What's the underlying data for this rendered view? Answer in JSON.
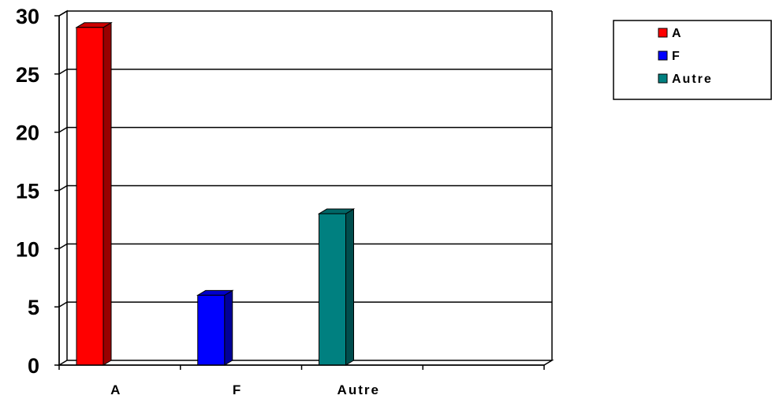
{
  "chart_data": {
    "type": "bar",
    "categories": [
      "A",
      "F",
      "Autre",
      ""
    ],
    "series": [
      {
        "name": "A",
        "values": [
          29,
          null,
          null,
          null
        ],
        "color": "#FF0000",
        "side": "#990000",
        "top": "#CC0000"
      },
      {
        "name": "F",
        "values": [
          null,
          6,
          null,
          null
        ],
        "color": "#0000FF",
        "side": "#000099",
        "top": "#0000CC"
      },
      {
        "name": "Autre",
        "values": [
          null,
          null,
          13,
          null
        ],
        "color": "#008080",
        "side": "#004D4D",
        "top": "#006666"
      }
    ],
    "y_ticks": [
      "0",
      "5",
      "10",
      "15",
      "20",
      "25",
      "30"
    ],
    "ylim": [
      0,
      30
    ],
    "grid": true,
    "legend": {
      "position": "top-right",
      "entries": [
        "A",
        "F",
        "Autre"
      ]
    }
  }
}
